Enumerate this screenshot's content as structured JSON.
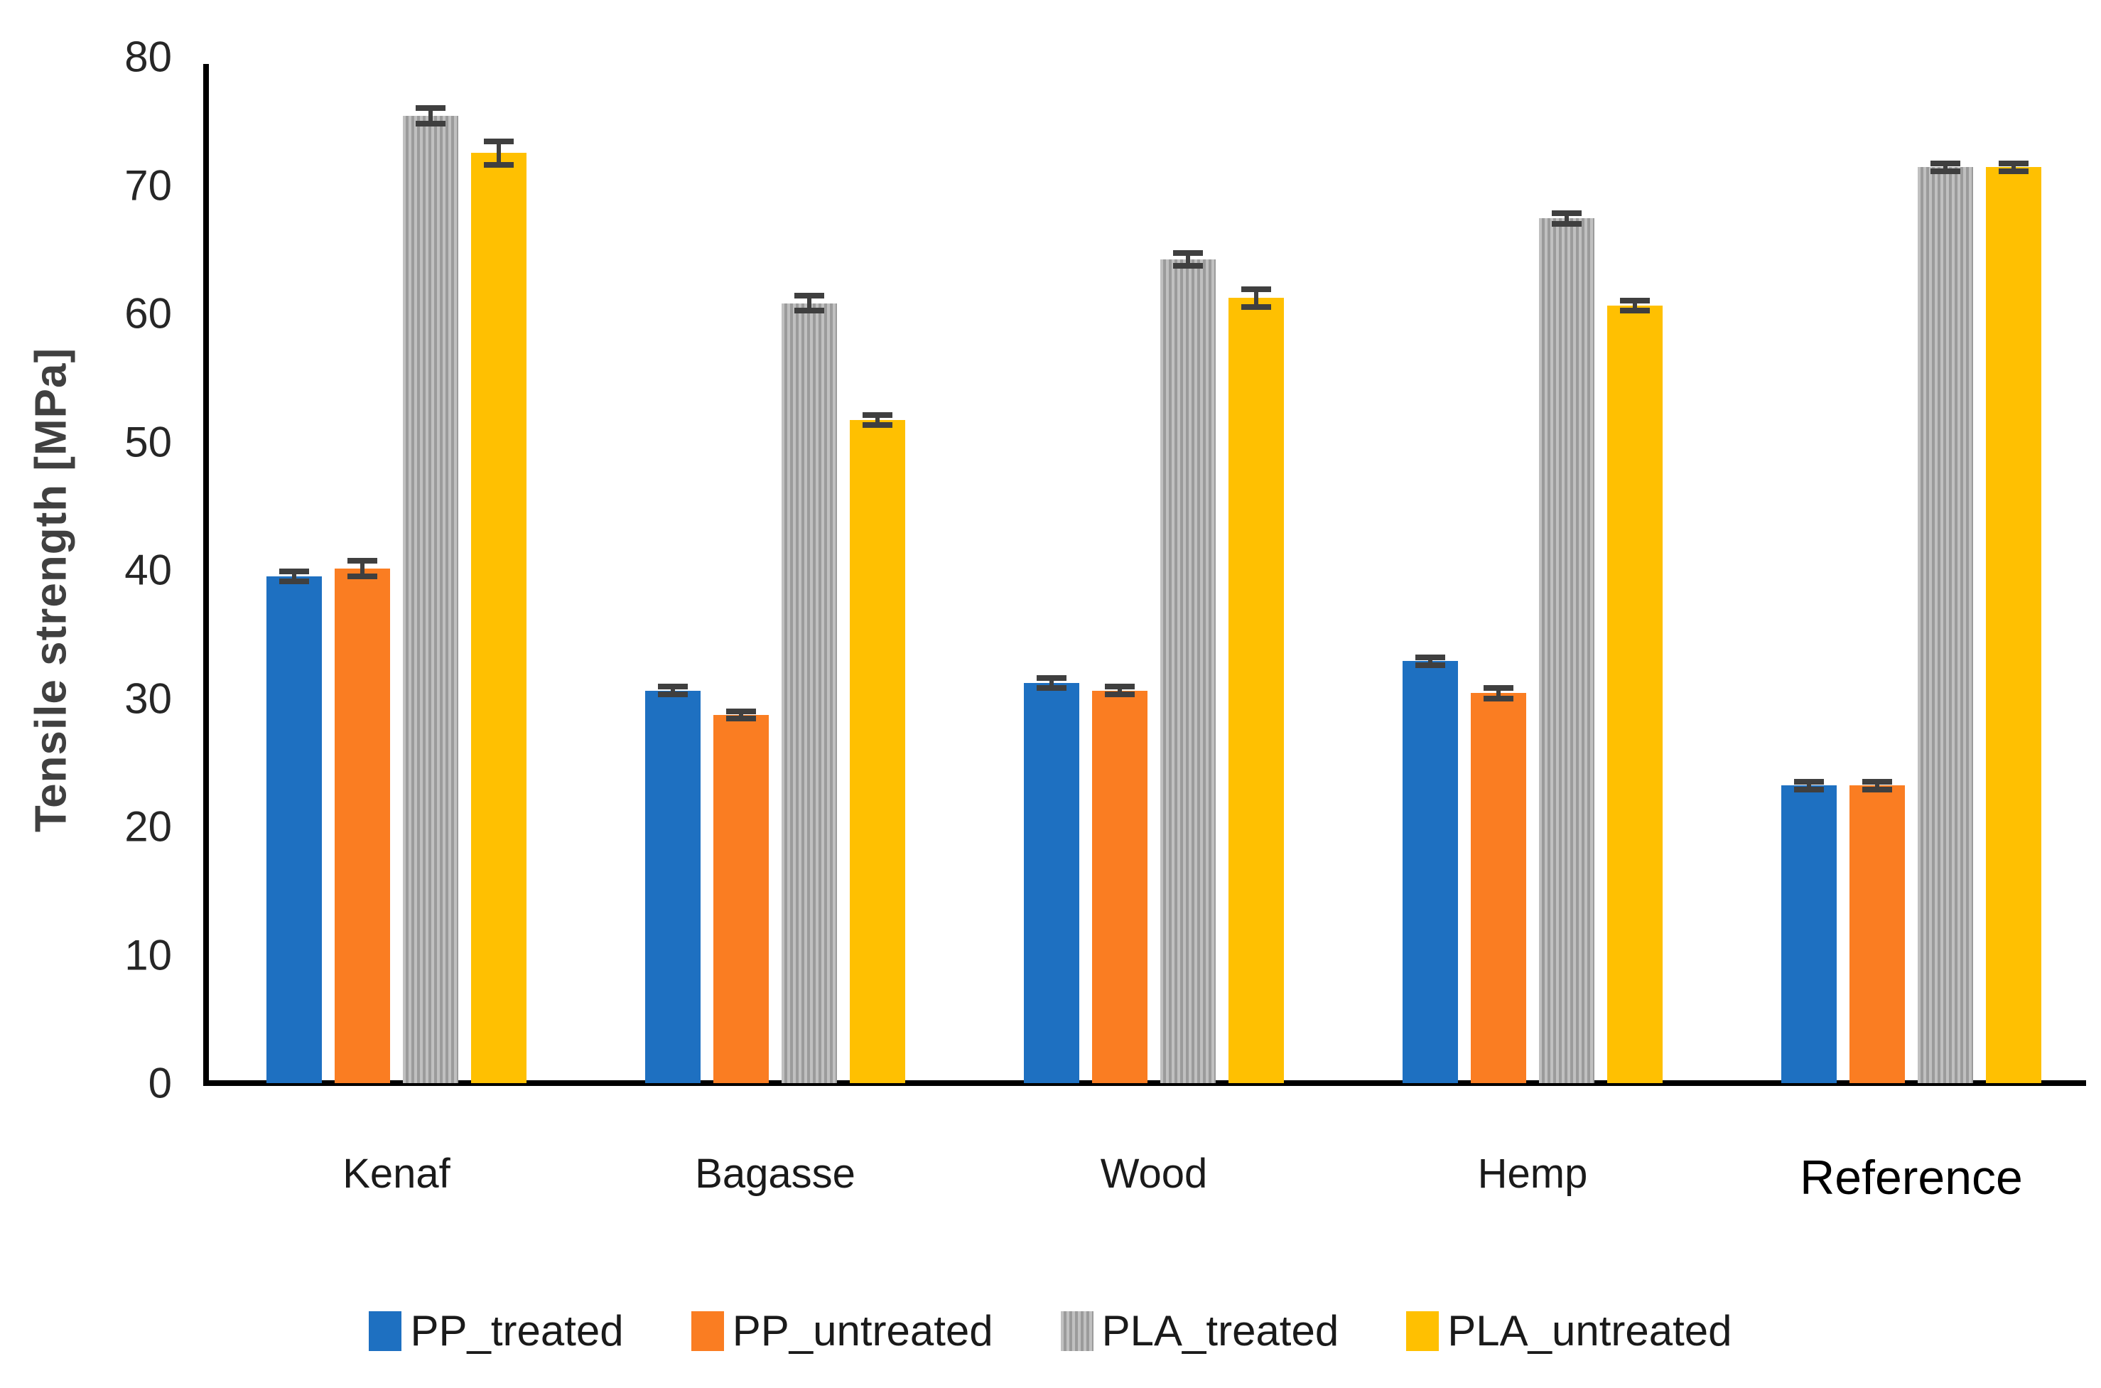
{
  "chart_data": {
    "type": "bar",
    "title": "",
    "xlabel": "",
    "ylabel": "Tensile strength [MPa]",
    "ylim": [
      0,
      80
    ],
    "yticks": [
      0,
      10,
      20,
      30,
      40,
      50,
      60,
      70,
      80
    ],
    "grid": false,
    "legend_position": "bottom",
    "error_bar_color": "#3F3F3F",
    "axis_color": "#000000",
    "categories": [
      "Kenaf",
      "Bagasse",
      "Wood",
      "Hemp",
      "Reference"
    ],
    "series": [
      {
        "name": "PP_treated",
        "color": "#1E70C1",
        "hatch": false,
        "values": [
          39.5,
          30.6,
          31.2,
          32.9,
          23.2
        ],
        "errors": [
          0.4,
          0.3,
          0.4,
          0.3,
          0.3
        ]
      },
      {
        "name": "PP_untreated",
        "color": "#FA7D22",
        "hatch": false,
        "values": [
          40.1,
          28.7,
          30.6,
          30.4,
          23.2
        ],
        "errors": [
          0.6,
          0.3,
          0.3,
          0.4,
          0.3
        ]
      },
      {
        "name": "PLA_treated",
        "color": "#ABABAB",
        "hatch": true,
        "values": [
          75.4,
          60.8,
          64.2,
          67.4,
          71.4
        ],
        "errors": [
          0.6,
          0.6,
          0.5,
          0.4,
          0.3
        ]
      },
      {
        "name": "PLA_untreated",
        "color": "#FFC001",
        "hatch": false,
        "values": [
          72.5,
          51.7,
          61.2,
          60.6,
          71.4
        ],
        "errors": [
          0.9,
          0.4,
          0.7,
          0.4,
          0.3
        ]
      }
    ]
  }
}
